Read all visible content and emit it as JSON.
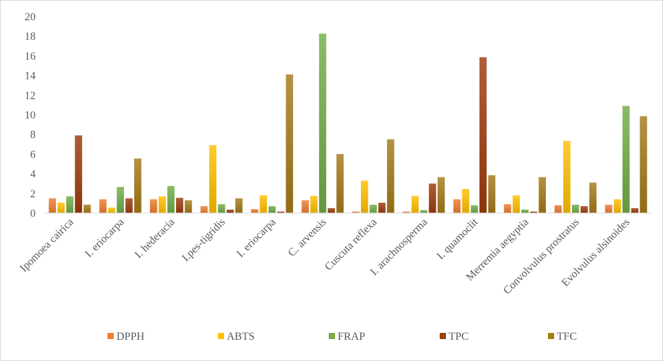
{
  "chart_data": {
    "type": "bar",
    "categories": [
      "Ipomoea cairica",
      "I. eriocarpa",
      "I. hederacia",
      "I.pes-tigridis",
      "I. eriocarpa",
      "C. arvensis",
      "Cuscuta reflexa",
      "I. arachnosperma",
      "I. quamoclit",
      "Merremia aegyptia",
      "Convolvulus prostratus",
      "Evolvulus alsinoides"
    ],
    "series": [
      {
        "name": "DPPH",
        "color": "#ED7D31",
        "values": [
          1.5,
          1.4,
          1.4,
          0.7,
          0.4,
          1.3,
          0.15,
          0.15,
          1.4,
          0.9,
          0.8,
          0.85
        ]
      },
      {
        "name": "ABTS",
        "color": "#FFC000",
        "values": [
          1.05,
          0.55,
          1.7,
          6.9,
          1.8,
          1.75,
          3.3,
          1.75,
          2.45,
          1.8,
          7.35,
          1.4
        ]
      },
      {
        "name": "FRAP",
        "color": "#70AD47",
        "values": [
          1.7,
          2.65,
          2.75,
          0.9,
          0.7,
          18.25,
          0.85,
          0.3,
          0.8,
          0.35,
          0.85,
          10.9
        ]
      },
      {
        "name": "TPC",
        "color": "#9E3B0E",
        "values": [
          7.9,
          1.5,
          1.55,
          0.35,
          0.15,
          0.5,
          1.05,
          3.0,
          15.85,
          0.15,
          0.7,
          0.5
        ]
      },
      {
        "name": "TFC",
        "color": "#A57A19",
        "values": [
          0.85,
          5.55,
          1.3,
          1.5,
          14.1,
          6.0,
          7.5,
          3.65,
          3.85,
          3.65,
          3.1,
          9.85
        ]
      }
    ],
    "yticks": [
      "0",
      "2",
      "4",
      "6",
      "8",
      "10",
      "12",
      "14",
      "16",
      "18",
      "20"
    ],
    "ylim": [
      0,
      20
    ],
    "title": "",
    "xlabel": "",
    "ylabel": "",
    "grid": false,
    "legend_position": "bottom"
  }
}
